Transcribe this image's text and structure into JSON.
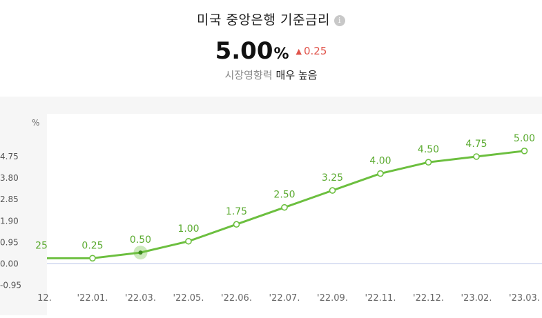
{
  "header": {
    "title": "미국 중앙은행 기준금리",
    "info_icon": "info-icon",
    "value": "5.00",
    "unit": "%",
    "change": "0.25",
    "change_direction": "up",
    "impact_label": "시장영향력",
    "impact_level": "매우 높음"
  },
  "colors": {
    "line": "#6cbf3f",
    "label": "#5aaa2f",
    "change_up": "#e0534a",
    "zero_line": "#b8c4e8"
  },
  "chart_data": {
    "type": "line",
    "title": "",
    "xlabel": "",
    "ylabel": "%",
    "ylim": [
      -0.95,
      5.7
    ],
    "yticks": [
      "4.75",
      "3.80",
      "2.85",
      "1.90",
      "0.95",
      "0.00",
      "-0.95"
    ],
    "ytick_values": [
      4.75,
      3.8,
      2.85,
      1.9,
      0.95,
      0.0,
      -0.95
    ],
    "grid": false,
    "leading_x_label": "12.",
    "leading_point_label": "25",
    "x": [
      "'22.01.",
      "'22.03.",
      "'22.05.",
      "'22.06.",
      "'22.07.",
      "'22.09.",
      "'22.11.",
      "'22.12.",
      "'23.02.",
      "'23.03."
    ],
    "values": [
      0.25,
      0.5,
      1.0,
      1.75,
      2.5,
      3.25,
      4.0,
      4.5,
      4.75,
      5.0
    ],
    "point_labels": [
      "0.25",
      "0.50",
      "1.00",
      "1.75",
      "2.50",
      "3.25",
      "4.00",
      "4.50",
      "4.75",
      "5.00"
    ],
    "highlighted_index": 1
  }
}
